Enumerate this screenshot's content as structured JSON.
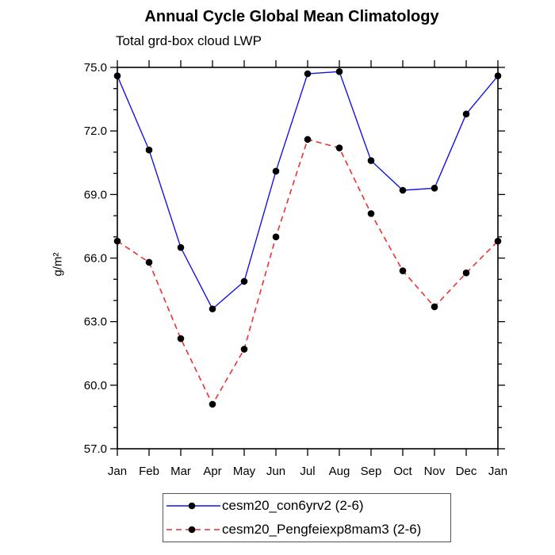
{
  "header": {
    "title": "Annual Cycle Global Mean Climatology",
    "subtitle": "Total grd-box cloud LWP"
  },
  "chart_data": {
    "type": "line",
    "title": "Annual Cycle Global Mean Climatology",
    "subtitle": "Total grd-box cloud LWP",
    "xlabel": "",
    "ylabel": "g/m²",
    "categories": [
      "Jan",
      "Feb",
      "Mar",
      "Apr",
      "May",
      "Jun",
      "Jul",
      "Aug",
      "Sep",
      "Oct",
      "Nov",
      "Dec",
      "Jan"
    ],
    "ylim": [
      57.0,
      75.0
    ],
    "y_major_ticks": [
      57.0,
      60.0,
      63.0,
      66.0,
      69.0,
      72.0,
      75.0
    ],
    "y_tick_labels": [
      "57.0",
      "60.0",
      "63.0",
      "66.0",
      "69.0",
      "72.0",
      "75.0"
    ],
    "y_minor_step": 1.0,
    "grid": false,
    "legend_position": "bottom-center",
    "frame_color": "#000000",
    "series": [
      {
        "name": "cesm20_con6yrv2 (2-6)",
        "color": "#1414e6",
        "line_style": "solid",
        "marker": "filled-circle",
        "marker_color": "#000000",
        "values": [
          74.6,
          71.1,
          66.5,
          63.6,
          64.9,
          70.1,
          74.7,
          74.8,
          70.6,
          69.2,
          69.3,
          72.8,
          74.6
        ]
      },
      {
        "name": "cesm20_Pengfeiexp8mam3 (2-6)",
        "color": "#ee3030",
        "line_style": "dashed",
        "marker": "filled-circle",
        "marker_color": "#000000",
        "values": [
          66.8,
          65.8,
          62.2,
          59.1,
          61.7,
          67.0,
          71.6,
          71.2,
          68.1,
          65.4,
          63.7,
          65.3,
          66.8
        ]
      }
    ]
  }
}
